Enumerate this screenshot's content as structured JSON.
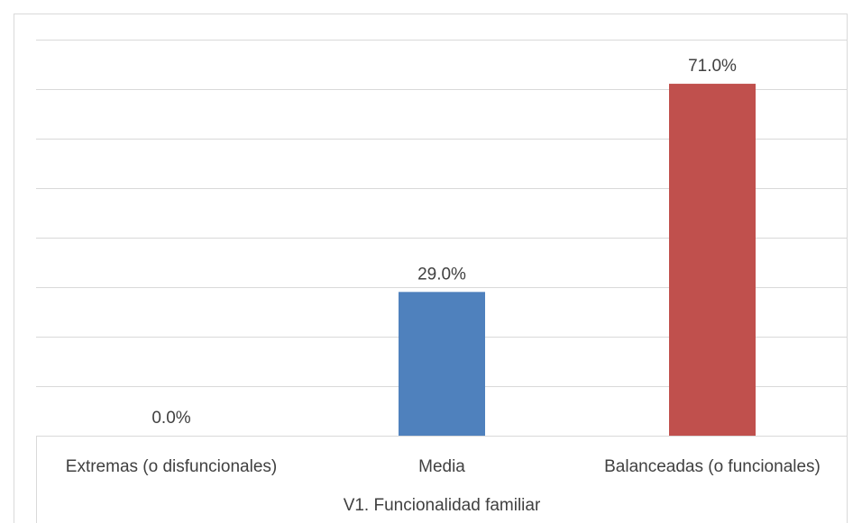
{
  "chart_data": {
    "type": "bar",
    "categories": [
      "Extremas (o disfuncionales)",
      "Media",
      "Balanceadas (o funcionales)"
    ],
    "values": [
      0.0,
      29.0,
      71.0
    ],
    "data_labels": [
      "0.0%",
      "29.0%",
      "71.0%"
    ],
    "bar_colors": [
      "#4f81bd",
      "#4f81bd",
      "#c0504d"
    ],
    "group_label": "V1. Funcionalidad familiar",
    "ylim": [
      0,
      80
    ],
    "grid": true,
    "legend": "none"
  }
}
